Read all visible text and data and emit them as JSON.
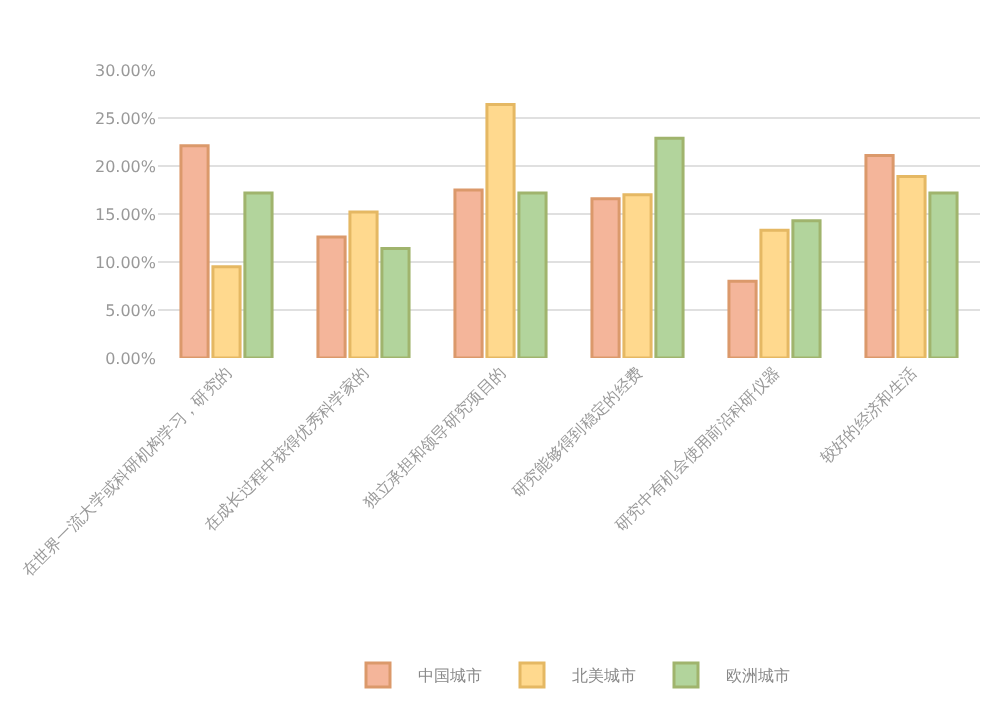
{
  "chart_data": {
    "type": "bar",
    "categories": [
      "在世界一流大学或科研机构学习，研究的",
      "在成长过程中获得优秀科学家的",
      "独立承担和领导研究项目的",
      "研究能够得到稳定的经费",
      "研究中有机会使用前沿科研仪器",
      "较好的经济和生活"
    ],
    "series": [
      {
        "name": "中国城市",
        "color": "#f4b59a",
        "values": [
          22.1,
          12.6,
          17.5,
          16.6,
          8.0,
          21.1
        ]
      },
      {
        "name": "北美城市",
        "color": "#ffd98e",
        "values": [
          9.5,
          15.2,
          26.4,
          17.0,
          13.3,
          18.9
        ]
      },
      {
        "name": "欧洲城市",
        "color": "#b2d49c",
        "values": [
          17.2,
          11.4,
          17.2,
          22.9,
          14.3,
          17.2
        ]
      }
    ],
    "ylim": [
      0,
      30
    ],
    "yticks": [
      {
        "value": 0,
        "label": "0.00%"
      },
      {
        "value": 5,
        "label": "5.00%"
      },
      {
        "value": 10,
        "label": "10.00%"
      },
      {
        "value": 15,
        "label": "15.00%"
      },
      {
        "value": 20,
        "label": "20.00%"
      },
      {
        "value": 25,
        "label": "25.00%"
      },
      {
        "value": 30,
        "label": "30.00%"
      }
    ],
    "grid": "y",
    "legend": "bottom"
  }
}
